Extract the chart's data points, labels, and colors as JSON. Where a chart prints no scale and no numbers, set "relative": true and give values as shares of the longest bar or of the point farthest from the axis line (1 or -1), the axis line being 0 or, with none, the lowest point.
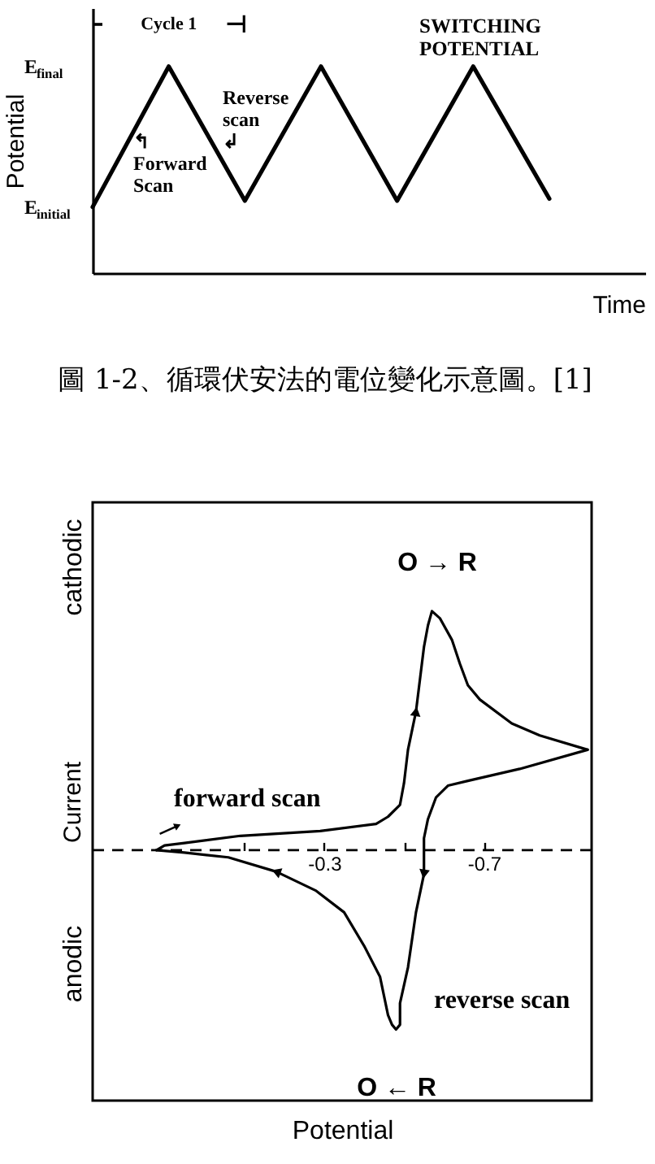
{
  "chart_data": [
    {
      "type": "line",
      "relative": true,
      "categories": [
        null,
        null,
        null,
        null,
        null,
        null,
        null
      ],
      "series": [
        {
          "color": "#000000",
          "values": [
            0.32,
            1,
            0.35,
            1,
            0.35,
            1,
            0.36
          ]
        }
      ],
      "xlabel": "Time",
      "ylabel": "Potential",
      "tick_labels": false,
      "annotations": [
        "E$_{final}$",
        "E$_{initial}$",
        "Cycle 1",
        "⊣",
        "SWITCHING\nPOTENTIAL",
        "↰\nForward\nScan",
        "Reverse\nscan\n↲",
        "圖 1-2、循環伏安法的電位變化示意圖。[1]"
      ]
    },
    {
      "type": "line",
      "relative": true,
      "xlim": [
        0.28,
        -0.97
      ],
      "xticks": [
        {
          "value": -0.1,
          "label": null
        },
        -0.3,
        {
          "value": -0.5,
          "label": null
        },
        -0.7
      ],
      "tick_labels": "x",
      "xlabel": "Potential",
      "ylabel": "Current",
      "series": [
        {
          "name": "forward scan",
          "color": "#000000",
          "x": [
            0.12,
            0.1,
            0.05,
            -0.09,
            -0.29,
            -0.43,
            -0.46,
            -0.49,
            -0.5,
            -0.51,
            -0.53,
            -0.55,
            -0.56,
            -0.57,
            -0.59,
            -0.62,
            -0.64,
            -0.66,
            -0.69,
            -0.77,
            -0.84,
            -0.96
          ],
          "values": [
            0,
            0.02,
            0.03,
            0.06,
            0.08,
            0.11,
            0.14,
            0.19,
            0.28,
            0.42,
            0.58,
            0.85,
            0.94,
            1,
            0.97,
            0.88,
            0.78,
            0.69,
            0.63,
            0.53,
            0.48,
            0.42
          ]
        },
        {
          "name": "reverse scan",
          "color": "#000000",
          "x": [
            -0.96,
            -0.79,
            -0.66,
            -0.61,
            -0.58,
            -0.56,
            -0.55,
            -0.55,
            -0.55,
            -0.53,
            -0.51,
            -0.49,
            -0.49,
            -0.48,
            -0.47,
            -0.46,
            -0.44,
            -0.4,
            -0.35,
            -0.28,
            -0.18,
            -0.06,
            0.05,
            0.12
          ],
          "values": [
            0.42,
            0.34,
            0.29,
            0.27,
            0.22,
            0.13,
            0.05,
            -0.03,
            -0.1,
            -0.26,
            -0.49,
            -0.64,
            -0.73,
            -0.75,
            -0.73,
            -0.69,
            -0.53,
            -0.4,
            -0.26,
            -0.17,
            -0.09,
            -0.03,
            -0.01,
            0
          ]
        }
      ],
      "ref_lines": [
        {
          "axis": "y",
          "value": 0,
          "line_style": "dashed"
        }
      ],
      "annotations": [
        "O → R",
        "O ← R",
        "cathodic",
        "anodic"
      ]
    }
  ]
}
